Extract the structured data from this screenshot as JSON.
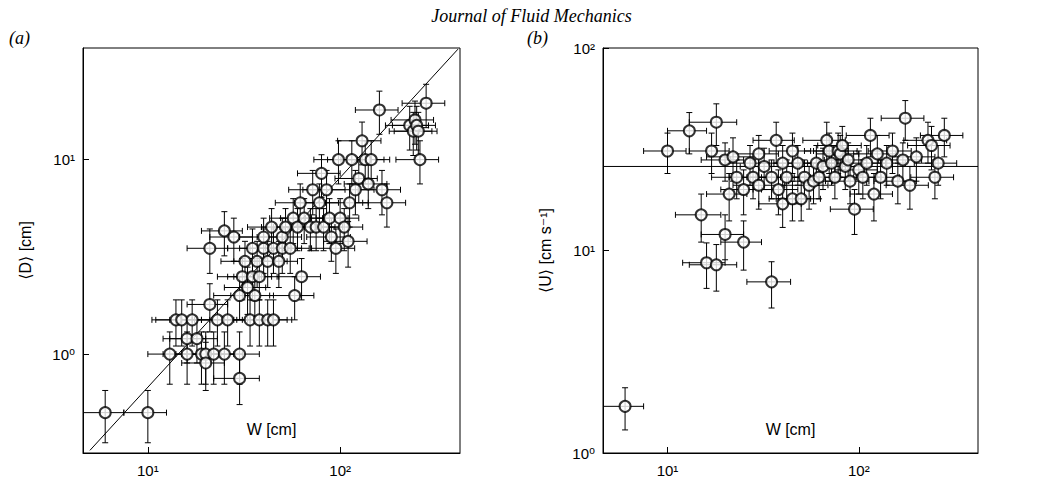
{
  "header": "Journal of Fluid Mechanics",
  "chart_data": [
    {
      "type": "scatter",
      "title": "(a)",
      "x_label": "W [cm]",
      "y_label": "⟨D⟩ [cm]",
      "log": true,
      "grid": false,
      "xlim": [
        4.6,
        420
      ],
      "ylim": [
        0.31,
        37.5
      ],
      "xticks": [
        {
          "value": 10,
          "label": "10¹"
        },
        {
          "value": 100,
          "label": "10²"
        }
      ],
      "yticks": [
        {
          "value": 1,
          "label": "10⁰"
        },
        {
          "value": 10,
          "label": "10¹"
        }
      ],
      "series": [
        {
          "type": "scatter",
          "marker": "open circle",
          "color": "#000000",
          "x": [
            6,
            10,
            13,
            14,
            15,
            16,
            16,
            17,
            18,
            19,
            20,
            20,
            21,
            21,
            22,
            23,
            25,
            25,
            26,
            28,
            30,
            30,
            30,
            31,
            32,
            33,
            34,
            35,
            35,
            36,
            37,
            38,
            38,
            40,
            40,
            42,
            42,
            44,
            45,
            45,
            48,
            50,
            50,
            52,
            55,
            57,
            58,
            60,
            62,
            63,
            65,
            70,
            72,
            75,
            78,
            80,
            82,
            85,
            88,
            90,
            95,
            98,
            100,
            105,
            110,
            112,
            115,
            120,
            125,
            130,
            135,
            140,
            145,
            160,
            165,
            175,
            230,
            240,
            245,
            250,
            255,
            260,
            280
          ],
          "values": [
            0.5,
            0.5,
            1.0,
            1.5,
            1.5,
            1.2,
            1.0,
            1.5,
            1.2,
            1.0,
            1.0,
            0.9,
            1.8,
            3.5,
            1.0,
            1.5,
            4.3,
            1.0,
            1.5,
            4.0,
            1.0,
            0.75,
            2.0,
            2.5,
            3.0,
            2.2,
            1.5,
            2.5,
            3.5,
            2.0,
            3.0,
            1.5,
            2.5,
            3.5,
            4.0,
            3.0,
            1.5,
            4.5,
            3.5,
            1.5,
            3.0,
            4.0,
            3.5,
            4.5,
            3.5,
            5.0,
            2.0,
            4.5,
            6.0,
            2.5,
            5.0,
            4.5,
            7.0,
            4.5,
            6.0,
            8.5,
            4.5,
            7.0,
            5.0,
            4.0,
            3.5,
            10.0,
            5.0,
            4.5,
            3.8,
            6.0,
            10.0,
            7.0,
            8.0,
            12.5,
            10.0,
            7.5,
            10.0,
            18.0,
            7.0,
            6.0,
            15.0,
            14.0,
            16.0,
            15.0,
            14.0,
            10.0,
            19.5
          ],
          "x_err": [
            1.5,
            2.5,
            3,
            3.5,
            4,
            4,
            4,
            4,
            5,
            5,
            5,
            5,
            5,
            5,
            6,
            6,
            6,
            6,
            7,
            7,
            8,
            8,
            8,
            8,
            8,
            8,
            9,
            9,
            9,
            9,
            9,
            10,
            10,
            10,
            10,
            11,
            11,
            11,
            11,
            11,
            12,
            13,
            13,
            13,
            14,
            14,
            15,
            15,
            16,
            16,
            16,
            18,
            18,
            19,
            20,
            20,
            21,
            21,
            22,
            23,
            24,
            25,
            25,
            26,
            28,
            28,
            29,
            30,
            31,
            33,
            34,
            35,
            36,
            40,
            41,
            44,
            58,
            60,
            61,
            63,
            64,
            65,
            70
          ],
          "y_err": [
            0.15,
            0.15,
            0.3,
            0.4,
            0.4,
            0.3,
            0.3,
            0.4,
            0.3,
            0.3,
            0.3,
            0.25,
            0.5,
            0.9,
            0.3,
            0.4,
            1.1,
            0.3,
            0.4,
            1.0,
            0.3,
            0.2,
            0.5,
            0.6,
            0.8,
            0.6,
            0.4,
            0.6,
            0.9,
            0.5,
            0.8,
            0.4,
            0.6,
            0.9,
            1.0,
            0.8,
            0.4,
            1.1,
            0.9,
            0.4,
            0.8,
            1.0,
            0.9,
            1.1,
            0.9,
            1.3,
            0.5,
            1.1,
            1.5,
            0.6,
            1.3,
            1.1,
            1.8,
            1.1,
            1.5,
            2.1,
            1.1,
            1.8,
            1.3,
            1.0,
            0.9,
            2.5,
            1.3,
            1.1,
            1.0,
            1.5,
            2.5,
            1.8,
            2.0,
            3.1,
            2.5,
            1.9,
            2.5,
            4.5,
            1.8,
            1.5,
            3.8,
            3.5,
            4.0,
            3.8,
            3.5,
            2.5,
            4.9
          ]
        },
        {
          "type": "line",
          "line_style": "solid",
          "color": "#000000",
          "x": [
            5,
            410
          ],
          "values": [
            0.32,
            37
          ]
        }
      ]
    },
    {
      "type": "scatter",
      "title": "(b)",
      "x_label": "W [cm]",
      "y_label": "⟨U⟩ [cm s⁻¹]",
      "log": true,
      "grid": false,
      "xlim": [
        4.6,
        420
      ],
      "ylim": [
        1,
        100
      ],
      "xticks": [
        {
          "value": 10,
          "label": "10¹"
        },
        {
          "value": 100,
          "label": "10²"
        }
      ],
      "yticks": [
        {
          "value": 1,
          "label": "10⁰"
        },
        {
          "value": 10,
          "label": "10¹"
        },
        {
          "value": 100,
          "label": "10²"
        }
      ],
      "series": [
        {
          "type": "scatter",
          "marker": "open circle",
          "color": "#000000",
          "x": [
            6,
            10,
            13,
            15,
            16,
            17,
            18,
            18,
            20,
            20,
            21,
            22,
            23,
            25,
            25,
            27,
            28,
            30,
            30,
            32,
            35,
            35,
            37,
            38,
            40,
            40,
            42,
            45,
            45,
            48,
            50,
            52,
            55,
            58,
            60,
            62,
            65,
            68,
            70,
            72,
            75,
            78,
            80,
            82,
            85,
            88,
            90,
            95,
            100,
            105,
            110,
            115,
            120,
            125,
            130,
            140,
            150,
            160,
            170,
            175,
            185,
            200,
            230,
            240,
            250,
            260,
            280
          ],
          "values": [
            1.7,
            31,
            39,
            15,
            8.7,
            31,
            43,
            8.5,
            12,
            28,
            19,
            29,
            23,
            11,
            20,
            27,
            23,
            30,
            21,
            26,
            7,
            23,
            35,
            20,
            17,
            27,
            23,
            18,
            31,
            27,
            18,
            23,
            21,
            22,
            27,
            23,
            26,
            35,
            31,
            27,
            23,
            31,
            30,
            33,
            26,
            28,
            22,
            16,
            25,
            23,
            27,
            37,
            19,
            30,
            23,
            27,
            31,
            22,
            28,
            45,
            21,
            29,
            35,
            33,
            23,
            27,
            37
          ],
          "x_err": [
            1.5,
            2.5,
            3,
            4,
            4,
            4,
            5,
            5,
            5,
            5,
            5,
            6,
            6,
            6,
            6,
            7,
            7,
            8,
            8,
            8,
            9,
            9,
            9,
            10,
            10,
            10,
            11,
            11,
            11,
            12,
            13,
            13,
            14,
            15,
            15,
            16,
            16,
            17,
            18,
            18,
            19,
            20,
            20,
            21,
            21,
            22,
            23,
            24,
            25,
            26,
            28,
            29,
            30,
            31,
            33,
            35,
            38,
            40,
            43,
            44,
            46,
            50,
            58,
            60,
            63,
            65,
            70
          ],
          "y_err": [
            0.4,
            7,
            9,
            4,
            2.2,
            7,
            10,
            2.2,
            3,
            6,
            5,
            7,
            5,
            3,
            5,
            6,
            5,
            7,
            5,
            6,
            1.8,
            5,
            8,
            5,
            4,
            6,
            5,
            4,
            7,
            6,
            4,
            5,
            5,
            5,
            6,
            5,
            6,
            8,
            7,
            6,
            5,
            7,
            7,
            8,
            6,
            6,
            5,
            4,
            6,
            5,
            6,
            8,
            5,
            7,
            5,
            6,
            7,
            5,
            6,
            10,
            5,
            7,
            8,
            8,
            5,
            6,
            8
          ]
        },
        {
          "type": "line",
          "line_style": "solid",
          "color": "#000000",
          "x": [
            4.6,
            420
          ],
          "values": [
            26,
            26
          ]
        }
      ]
    }
  ]
}
